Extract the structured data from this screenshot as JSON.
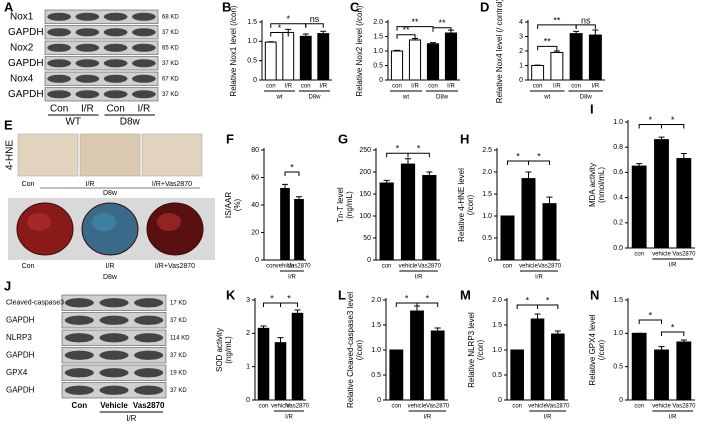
{
  "chart_data": [
    {
      "type": "bar",
      "panel": "B",
      "ylabel": "Relative Nox1 level (/con)",
      "categories": [
        "con",
        "I/R",
        "con",
        "I/R"
      ],
      "groups": [
        "wt",
        "D8w"
      ],
      "values": [
        0.98,
        1.23,
        1.13,
        1.2
      ],
      "errors": [
        0.01,
        0.08,
        0.06,
        0.06
      ],
      "colors": [
        "#ffffff",
        "#ffffff",
        "#000000",
        "#000000"
      ],
      "significance": [
        "*",
        "*",
        "ns"
      ],
      "ylim": [
        0,
        1.5
      ],
      "yticks": [
        0,
        0.5,
        {
          "value": 1,
          "label": "1.0"
        },
        1.5
      ]
    },
    {
      "type": "bar",
      "panel": "C",
      "ylabel": "Relative Nox2 level (/con)",
      "categories": [
        "con",
        "I/R",
        "con",
        "I/R"
      ],
      "groups": [
        "wt",
        "D8w"
      ],
      "values": [
        1.0,
        1.38,
        1.25,
        1.62
      ],
      "errors": [
        0.02,
        0.05,
        0.04,
        0.1
      ],
      "colors": [
        "#ffffff",
        "#ffffff",
        "#000000",
        "#000000"
      ],
      "significance": [
        "**",
        "**",
        "**"
      ],
      "ylim": [
        0,
        2
      ],
      "yticks": [
        0,
        0.5,
        {
          "value": 1,
          "label": "1.0"
        },
        1.5,
        {
          "value": 2,
          "label": "2.0"
        }
      ]
    },
    {
      "type": "bar",
      "panel": "D",
      "ylabel": "Relative Nox4 level (/ control)",
      "categories": [
        "con",
        "I/R",
        "con",
        "I/R"
      ],
      "groups": [
        "wt",
        "D8w"
      ],
      "values": [
        1.0,
        1.9,
        3.2,
        3.1
      ],
      "errors": [
        0.03,
        0.1,
        0.15,
        0.35
      ],
      "colors": [
        "#ffffff",
        "#ffffff",
        "#000000",
        "#000000"
      ],
      "significance": [
        "**",
        "**",
        "ns"
      ],
      "ylim": [
        0,
        4
      ],
      "yticks": [
        0,
        1,
        2,
        3,
        4
      ]
    },
    {
      "type": "bar",
      "panel": "F",
      "ylabel": [
        "IS/AAR",
        "(%)"
      ],
      "categories": [
        "con",
        "vehicle",
        "Vas2870"
      ],
      "groups": [
        "I/R"
      ],
      "values": [
        0,
        52,
        44
      ],
      "errors": [
        0,
        3,
        2
      ],
      "colors": [
        "#000000",
        "#000000",
        "#000000"
      ],
      "significance": [
        "*"
      ],
      "ylim": [
        0,
        80
      ],
      "yticks": [
        0,
        20,
        40,
        60,
        80
      ]
    },
    {
      "type": "bar",
      "panel": "G",
      "ylabel": [
        "Tn-T level",
        "(ng/mL)"
      ],
      "categories": [
        "con",
        "vehicle",
        "Vas2870"
      ],
      "groups": [
        "I/R"
      ],
      "values": [
        175,
        218,
        192
      ],
      "errors": [
        6,
        12,
        8
      ],
      "colors": [
        "#000000",
        "#000000",
        "#000000"
      ],
      "significance": [
        "*",
        "*"
      ],
      "ylim": [
        0,
        250
      ],
      "yticks": [
        0,
        50,
        100,
        150,
        200,
        250
      ]
    },
    {
      "type": "bar",
      "panel": "H",
      "ylabel": [
        "Relative 4-HNE level",
        "(/con)"
      ],
      "categories": [
        "con",
        "vehicle",
        "Vas2870"
      ],
      "groups": [
        "I/R"
      ],
      "values": [
        1.0,
        1.85,
        1.28
      ],
      "errors": [
        0,
        0.15,
        0.15
      ],
      "colors": [
        "#000000",
        "#000000",
        "#000000"
      ],
      "significance": [
        "*",
        "*"
      ],
      "ylim": [
        0,
        2.5
      ],
      "yticks": [
        0,
        0.5,
        {
          "value": 1,
          "label": "1.0"
        },
        1.5,
        {
          "value": 2,
          "label": "2.0"
        },
        2.5
      ]
    },
    {
      "type": "bar",
      "panel": "I",
      "ylabel": [
        "MDA activity",
        "(nmol/mL)"
      ],
      "categories": [
        "con",
        "vehicle",
        "Vas2870"
      ],
      "groups": [
        "I/R"
      ],
      "values": [
        0.65,
        0.86,
        0.71
      ],
      "errors": [
        0.02,
        0.02,
        0.04
      ],
      "colors": [
        "#000000",
        "#000000",
        "#000000"
      ],
      "significance": [
        "*",
        "*"
      ],
      "ylim": [
        0,
        1
      ],
      "yticks": [
        {
          "value": 0,
          "label": "0.0"
        },
        0.2,
        0.4,
        0.6,
        0.8,
        {
          "value": 1,
          "label": "1.0"
        }
      ]
    },
    {
      "type": "bar",
      "panel": "K",
      "ylabel": [
        "SOD activity",
        "(ng/mL)"
      ],
      "categories": [
        "con",
        "vehicle",
        "Vas2870"
      ],
      "groups": [
        "I/R"
      ],
      "values": [
        2.15,
        1.72,
        2.6
      ],
      "errors": [
        0.07,
        0.15,
        0.1
      ],
      "colors": [
        "#000000",
        "#000000",
        "#000000"
      ],
      "significance": [
        "*",
        "*"
      ],
      "ylim": [
        0,
        3
      ],
      "yticks": [
        0,
        1,
        2,
        3
      ]
    },
    {
      "type": "bar",
      "panel": "L",
      "ylabel": [
        "Relative Cleaved-caspase3 level",
        "(/con)"
      ],
      "categories": [
        "con",
        "vehicle",
        "Vas2870"
      ],
      "groups": [
        "I/R"
      ],
      "values": [
        1.0,
        1.78,
        1.38
      ],
      "errors": [
        0,
        0.1,
        0.06
      ],
      "colors": [
        "#000000",
        "#000000",
        "#000000"
      ],
      "significance": [
        "*",
        "*"
      ],
      "ylim": [
        0,
        2
      ],
      "yticks": [
        0,
        0.5,
        {
          "value": 1,
          "label": "1.0"
        },
        1.5,
        {
          "value": 2,
          "label": "2.0"
        }
      ]
    },
    {
      "type": "bar",
      "panel": "M",
      "ylabel": [
        "Relative NLRP3 level",
        "(/con)"
      ],
      "categories": [
        "con",
        "vehicle",
        "Vas2870"
      ],
      "groups": [
        "I/R"
      ],
      "values": [
        1.0,
        1.62,
        1.32
      ],
      "errors": [
        0,
        0.1,
        0.06
      ],
      "colors": [
        "#000000",
        "#000000",
        "#000000"
      ],
      "significance": [
        "*",
        "*"
      ],
      "ylim": [
        0,
        2
      ],
      "yticks": [
        0,
        0.5,
        {
          "value": 1,
          "label": "1.0"
        },
        1.5,
        {
          "value": 2,
          "label": "2.0"
        }
      ]
    },
    {
      "type": "bar",
      "panel": "N",
      "ylabel": [
        "Relative GPX4 level",
        "(/con)"
      ],
      "categories": [
        "con",
        "vehicle",
        "Vas2870"
      ],
      "groups": [
        "I/R"
      ],
      "values": [
        1.0,
        0.75,
        0.87
      ],
      "errors": [
        0,
        0.05,
        0.03
      ],
      "colors": [
        "#000000",
        "#000000",
        "#000000"
      ],
      "significance": [
        "*",
        "*"
      ],
      "ylim": [
        0,
        1.5
      ],
      "yticks": [
        0,
        0.5,
        {
          "value": 1,
          "label": "1.0"
        },
        1.5
      ]
    }
  ],
  "blots": [
    {
      "panel": "A",
      "rows": [
        {
          "label": "Nox1",
          "kd": "68 KD"
        },
        {
          "label": "GAPDH",
          "kd": "37 KD"
        },
        {
          "label": "Nox2",
          "kd": "65 KD"
        },
        {
          "label": "GAPDH",
          "kd": "37 KD"
        },
        {
          "label": "Nox4",
          "kd": "67 KD"
        },
        {
          "label": "GAPDH",
          "kd": "37 KD"
        }
      ],
      "lanes": [
        "Con",
        "I/R",
        "Con",
        "I/R"
      ],
      "groups": [
        "WT",
        "D8w"
      ]
    },
    {
      "panel": "J",
      "rows": [
        {
          "label": "Cleaved-caspase3",
          "kd": "17 KD"
        },
        {
          "label": "GAPDH",
          "kd": "37 KD"
        },
        {
          "label": "NLRP3",
          "kd": "114 KD"
        },
        {
          "label": "GAPDH",
          "kd": "37 KD"
        },
        {
          "label": "GPX4",
          "kd": "19 KD"
        },
        {
          "label": "GAPDH",
          "kd": "37 KD"
        }
      ],
      "lanes": [
        "Con",
        "Vehicle",
        "Vas2870"
      ],
      "groups": [
        "I/R"
      ]
    }
  ],
  "images": {
    "panel": "E",
    "stain": "4-HNE",
    "stain_labels": [
      "Con",
      "I/R",
      "I/R+Vas2870"
    ],
    "stain_group": "D8w",
    "heart_labels": [
      "Con",
      "I/R",
      "I/R+Vas2870"
    ],
    "heart_group": "D8w"
  }
}
